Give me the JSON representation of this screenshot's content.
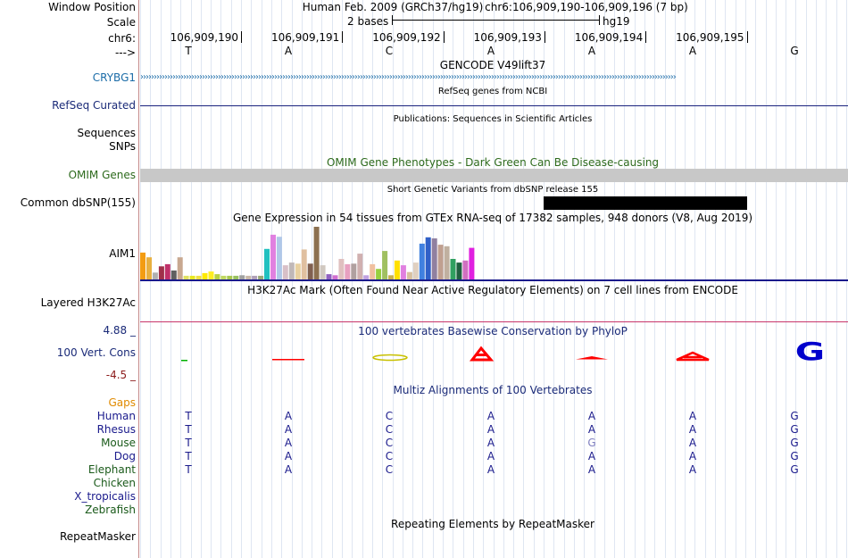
{
  "labels": {
    "window_position": "Window Position",
    "scale": "Scale",
    "chr": "chr6:",
    "arrow": "--->",
    "crybg1": "CRYBG1",
    "refseq": "RefSeq Curated",
    "sequences": "Sequences",
    "snps": "SNPs",
    "omim": "OMIM Genes",
    "dbsnp": "Common dbSNP(155)",
    "aim1": "AIM1",
    "h3k27ac": "Layered H3K27Ac",
    "phylop_max": "4.88 _",
    "phylop": "100 Vert. Cons",
    "phylop_min": "-4.5 _",
    "gaps": "Gaps",
    "repeatmasker": "RepeatMasker"
  },
  "header": {
    "assembly": "Human Feb. 2009 (GRCh37/hg19)",
    "position": "chr6:106,909,190-106,909,196 (7 bp)",
    "scale_text": "2 bases",
    "scale_db": "hg19",
    "coords": [
      "106,909,190",
      "106,909,191",
      "106,909,192",
      "106,909,193",
      "106,909,194",
      "106,909,195"
    ],
    "bases": [
      "T",
      "A",
      "C",
      "A",
      "A",
      "A",
      "G"
    ]
  },
  "tracks": {
    "gencode": "GENCODE V49lift37",
    "refseq_title": "RefSeq genes from NCBI",
    "publications": "Publications: Sequences in Scientific Articles",
    "omim_title": "OMIM Gene Phenotypes - Dark Green Can Be Disease-causing",
    "dbsnp_title": "Short Genetic Variants from dbSNP release 155",
    "gtex_title": "Gene Expression in 54 tissues from GTEx RNA-seq of 17382 samples, 948 donors (V8, Aug 2019)",
    "h3k27ac_title": "H3K27Ac Mark (Often Found Near Active Regulatory Elements) on 7 cell lines from ENCODE",
    "phylop_title": "100 vertebrates Basewise Conservation by PhyloP",
    "multiz_title": "Multiz Alignments of 100 Vertebrates",
    "repeat_title": "Repeating Elements by RepeatMasker"
  },
  "gtex_levels": [
    0.51,
    0.42,
    0.13,
    0.25,
    0.29,
    0.17,
    0.42,
    0.07,
    0.07,
    0.07,
    0.12,
    0.15,
    0.1,
    0.07,
    0.07,
    0.07,
    0.08,
    0.07,
    0.07,
    0.07,
    0.58,
    0.85,
    0.81,
    0.27,
    0.32,
    0.3,
    0.57,
    0.3,
    1.0,
    0.27,
    0.1,
    0.08,
    0.39,
    0.29,
    0.3,
    0.49,
    0.08,
    0.29,
    0.2,
    0.54,
    0.08,
    0.36,
    0.27,
    0.14,
    0.32,
    0.68,
    0.8,
    0.78,
    0.66,
    0.63,
    0.39,
    0.32,
    0.36,
    0.6
  ],
  "gtex_colors": [
    "#f39c12",
    "#e8b040",
    "#b0b0b0",
    "#a0304a",
    "#c0306a",
    "#606060",
    "#c8a890",
    "#e0e060",
    "#e8e820",
    "#f0e040",
    "#ffea00",
    "#ffee20",
    "#b8d040",
    "#c0d860",
    "#a8c850",
    "#98c060",
    "#a0a0a0",
    "#c8b8a8",
    "#b0a0b8",
    "#98a878",
    "#20c0c0",
    "#e080e0",
    "#b0c8e8",
    "#d8c0c8",
    "#c0b8b8",
    "#e8d0a0",
    "#e0c0a0",
    "#806050",
    "#8c7050",
    "#d0c8c0",
    "#9060c0",
    "#d070d0",
    "#e0c0c0",
    "#e8a0c0",
    "#b0a0a0",
    "#d0b0b0",
    "#c0a0e0",
    "#f0c0a0",
    "#98d040",
    "#a0c060",
    "#c8b050",
    "#ffe000",
    "#e080e0",
    "#d8c0a0",
    "#e0d0c0",
    "#4080e0",
    "#3060c8",
    "#9080a0",
    "#c0a090",
    "#c0b0a0",
    "#30a060",
    "#206040",
    "#d070c0",
    "#e020e0"
  ],
  "multiz": [
    {
      "species": "Human",
      "seq": [
        "T",
        "A",
        "C",
        "A",
        "A",
        "A",
        "G"
      ]
    },
    {
      "species": "Rhesus",
      "seq": [
        "T",
        "A",
        "C",
        "A",
        "A",
        "A",
        "G"
      ]
    },
    {
      "species": "Mouse",
      "seq": [
        "T",
        "A",
        "C",
        "A",
        "G",
        "A",
        "G"
      ]
    },
    {
      "species": "Dog",
      "seq": [
        "T",
        "A",
        "C",
        "A",
        "A",
        "A",
        "G"
      ]
    },
    {
      "species": "Elephant",
      "seq": [
        "T",
        "A",
        "C",
        "A",
        "A",
        "A",
        "G"
      ]
    },
    {
      "species": "Chicken",
      "seq": []
    },
    {
      "species": "X_tropicalis",
      "seq": []
    },
    {
      "species": "Zebrafish",
      "seq": []
    }
  ],
  "colors": {
    "gencode_blue": "#1b6ca8",
    "refseq_navy": "#1a237e",
    "omim_gray": "#c8c8c8",
    "dbsnp_black": "#000000",
    "h3k27ac_pink": "#c8366a",
    "phylop_red": "#ff0000",
    "phylop_blue": "#0000cc",
    "gaps_orange": "#e08a00"
  }
}
